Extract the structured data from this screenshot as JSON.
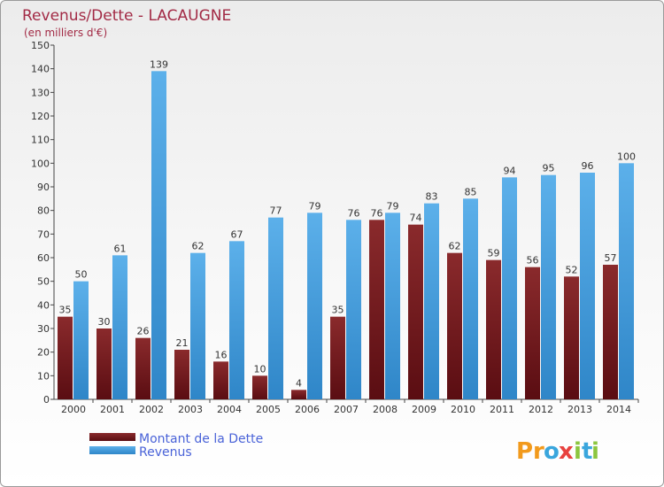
{
  "chart_data": {
    "type": "bar",
    "title": "Revenus/Dette - LACAUGNE",
    "subtitle": "(en milliers d'€)",
    "categories": [
      "2000",
      "2001",
      "2002",
      "2003",
      "2004",
      "2005",
      "2006",
      "2007",
      "2008",
      "2009",
      "2010",
      "2011",
      "2012",
      "2013",
      "2014"
    ],
    "series": [
      {
        "name": "Montant de la Dette",
        "color": "#7a1a1d",
        "values": [
          35,
          30,
          26,
          21,
          16,
          10,
          4,
          35,
          76,
          74,
          62,
          59,
          56,
          52,
          57
        ]
      },
      {
        "name": "Revenus",
        "color": "#4ea3e0",
        "values": [
          50,
          61,
          139,
          62,
          67,
          77,
          79,
          76,
          79,
          83,
          85,
          94,
          95,
          96,
          100
        ]
      }
    ],
    "ylim": [
      0,
      150
    ],
    "yticks": [
      0,
      10,
      20,
      30,
      40,
      50,
      60,
      70,
      80,
      90,
      100,
      110,
      120,
      130,
      140,
      150
    ],
    "grid": false,
    "legend_position": "bottom-left"
  },
  "logo": {
    "text": "Proxiti",
    "letters": [
      {
        "ch": "P",
        "color": "#f29a1c"
      },
      {
        "ch": "r",
        "color": "#f29a1c"
      },
      {
        "ch": "o",
        "color": "#3aa6dd"
      },
      {
        "ch": "x",
        "color": "#e8423f"
      },
      {
        "ch": "i",
        "color": "#8cc63f"
      },
      {
        "ch": "t",
        "color": "#3aa6dd"
      },
      {
        "ch": "i",
        "color": "#8cc63f"
      }
    ]
  }
}
